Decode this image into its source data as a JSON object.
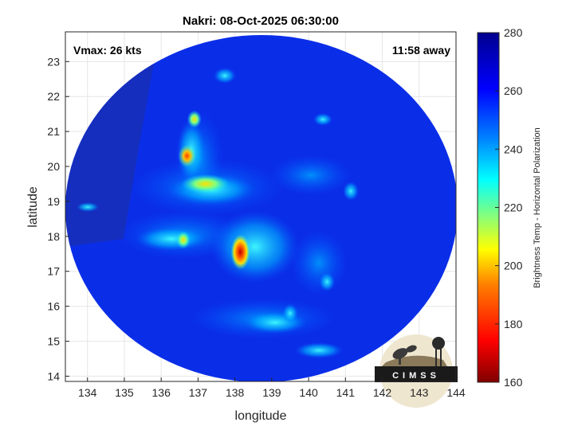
{
  "title": "Nakri: 08-Oct-2025 06:30:00",
  "annotations": {
    "vmax": "Vmax: 26 kts",
    "time_away": "11:58 away"
  },
  "axes": {
    "xlabel": "longitude",
    "ylabel": "latitude",
    "xlim": [
      133.4,
      144.0
    ],
    "ylim": [
      13.85,
      23.85
    ],
    "xticks": [
      "134",
      "135",
      "136",
      "137",
      "138",
      "139",
      "140",
      "141",
      "142",
      "143",
      "144"
    ],
    "yticks": [
      "14",
      "15",
      "16",
      "17",
      "18",
      "19",
      "20",
      "21",
      "22",
      "23"
    ]
  },
  "colorbar": {
    "label": "Brightness Temp - Horizontal Polarization",
    "range": [
      160,
      280
    ],
    "ticks": [
      "280",
      "260",
      "240",
      "220",
      "200",
      "180",
      "160"
    ],
    "colors": [
      "#800000",
      "#ff0000",
      "#ff8000",
      "#ffff00",
      "#80ff80",
      "#00ffff",
      "#0080ff",
      "#0000ff",
      "#00008f"
    ]
  },
  "logo": {
    "text": "CIMSS"
  },
  "swath": {
    "center_lon": 138.75,
    "center_lat": 18.85,
    "radius_deg_lat": 4.95
  },
  "cold_cores": [
    {
      "lon": 138.15,
      "lat": 17.55,
      "tb": 180
    },
    {
      "lon": 136.7,
      "lat": 20.3,
      "tb": 190
    },
    {
      "lon": 136.9,
      "lat": 21.35,
      "tb": 200
    },
    {
      "lon": 136.6,
      "lat": 17.9,
      "tb": 205
    },
    {
      "lon": 137.2,
      "lat": 19.5,
      "tb": 215
    },
    {
      "lon": 140.5,
      "lat": 16.7,
      "tb": 225
    },
    {
      "lon": 139.5,
      "lat": 15.8,
      "tb": 235
    }
  ]
}
